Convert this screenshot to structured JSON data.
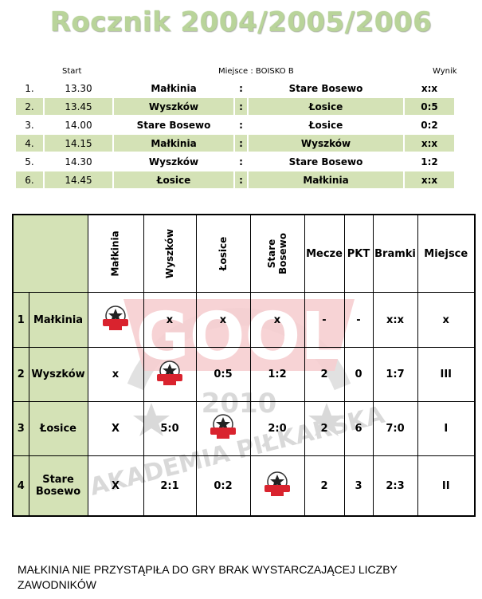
{
  "title": "Rocznik 2004/2005/2006",
  "schedule": {
    "start_label": "Start",
    "place_label": "Miejsce : BOISKO B",
    "result_label": "Wynik",
    "rows": [
      {
        "no": "1.",
        "time": "13.30",
        "home": "Małkinia",
        "sep": ":",
        "away": "Stare Bosewo",
        "score": "x:x"
      },
      {
        "no": "2.",
        "time": "13.45",
        "home": "Wyszków",
        "sep": ":",
        "away": "Łosice",
        "score": "0:5"
      },
      {
        "no": "3.",
        "time": "14.00",
        "home": "Stare Bosewo",
        "sep": ":",
        "away": "Łosice",
        "score": "0:2"
      },
      {
        "no": "4.",
        "time": "14.15",
        "home": "Małkinia",
        "sep": ":",
        "away": "Wyszków",
        "score": "x:x"
      },
      {
        "no": "5.",
        "time": "14.30",
        "home": "Wyszków",
        "sep": ":",
        "away": "Stare Bosewo",
        "score": "1:2"
      },
      {
        "no": "6.",
        "time": "14.45",
        "home": "Łosice",
        "sep": ":",
        "away": "Małkinia",
        "score": "x:x"
      }
    ]
  },
  "standings": {
    "teams_header": [
      "Małkinia",
      "Wyszków",
      "Łosice",
      "Stare\nBosewo"
    ],
    "team_header_1": "Małkinia",
    "team_header_2": "Wyszków",
    "team_header_3": "Łosice",
    "team_header_4a": "Stare",
    "team_header_4b": "Bosewo",
    "col_mecze": "Mecze",
    "col_pkt": "PKT",
    "col_bramki": "Bramki",
    "col_miejsce": "Miejsce",
    "rows": [
      {
        "no": "1",
        "team": "Małkinia",
        "team_b": "",
        "c1": "",
        "c2": "x",
        "c3": "x",
        "c4": "x",
        "mecze": "-",
        "pkt": "-",
        "bramki": "x:x",
        "miejsce": "x"
      },
      {
        "no": "2",
        "team": "Wyszków",
        "team_b": "",
        "c1": "x",
        "c2": "",
        "c3": "0:5",
        "c4": "1:2",
        "mecze": "2",
        "pkt": "0",
        "bramki": "1:7",
        "miejsce": "III"
      },
      {
        "no": "3",
        "team": "Łosice",
        "team_b": "",
        "c1": "X",
        "c2": "5:0",
        "c3": "",
        "c4": "2:0",
        "mecze": "2",
        "pkt": "6",
        "bramki": "7:0",
        "miejsce": "I"
      },
      {
        "no": "4",
        "team": "Stare",
        "team_b": "Bosewo",
        "c1": "X",
        "c2": "2:1",
        "c3": "0:2",
        "c4": "",
        "mecze": "2",
        "pkt": "3",
        "bramki": "2:3",
        "miejsce": "II"
      }
    ]
  },
  "logo_text": "GOOL",
  "watermark_text": {
    "year": "2010",
    "name": "AKADEMIA PIŁKARSKA",
    "brand": "GOOL"
  },
  "footer_line1": "MAŁKINIA NIE PRZYSTĄPIŁA DO GRY BRAK WYSTARCZAJĄCEJ LICZBY",
  "footer_line2": "ZAWODNIKÓW",
  "colors": {
    "green_fill": "#d4e2b6",
    "title_green": "#b9d49a",
    "logo_red": "#d9232e"
  }
}
